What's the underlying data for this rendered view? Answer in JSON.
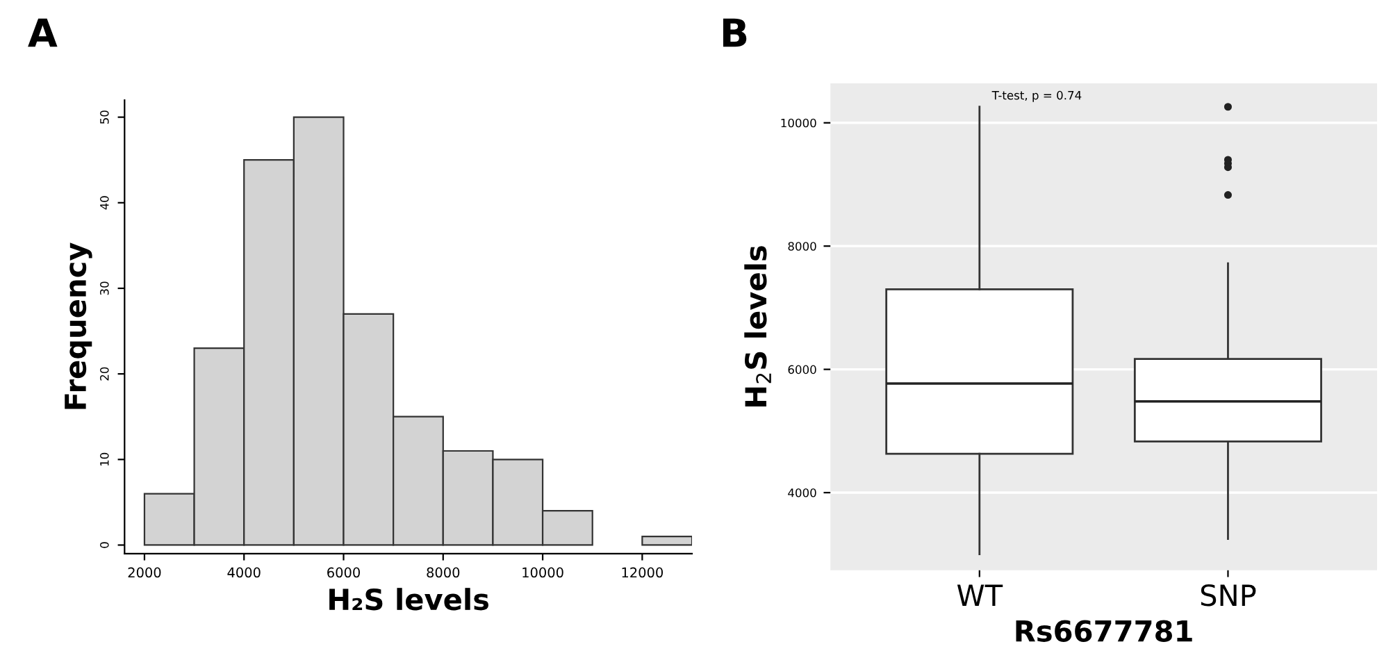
{
  "chart_data": [
    {
      "type": "histogram",
      "title": "A",
      "xlabel": "H₂S levels",
      "ylabel": "Frequency",
      "bins": [
        2000,
        3000,
        4000,
        5000,
        6000,
        7000,
        8000,
        9000,
        10000,
        11000,
        12000,
        13000
      ],
      "values": [
        6,
        23,
        45,
        50,
        27,
        15,
        11,
        10,
        4,
        0,
        1
      ],
      "color": "#d3d3d3",
      "xlim": [
        1600,
        13000
      ],
      "xticks": [
        2000,
        4000,
        6000,
        8000,
        10000,
        12000
      ],
      "ylim": [
        -1,
        52
      ],
      "yticks": [
        0,
        10,
        20,
        30,
        40,
        50
      ],
      "grid": false
    },
    {
      "type": "box",
      "title": "B",
      "xlabel": "Rs6677781",
      "ylabel": "H$_{2}$S levels",
      "categories": [
        "WT",
        "SNP"
      ],
      "boxes": [
        {
          "low": 3000,
          "q1": 4630,
          "median": 5770,
          "q3": 7300,
          "high": 10260
        },
        {
          "low": 3250,
          "q1": 4830,
          "median": 5480,
          "q3": 6170,
          "high": 7720,
          "outliers": [
            10260,
            9400,
            9340,
            9280,
            8830
          ]
        }
      ],
      "color": "#ffffff",
      "ylim": [
        2740,
        10640
      ],
      "yticks": [
        4000,
        6000,
        8000,
        10000
      ],
      "grid": "y",
      "annotations": [
        "T-test, p = 0.74"
      ]
    }
  ]
}
